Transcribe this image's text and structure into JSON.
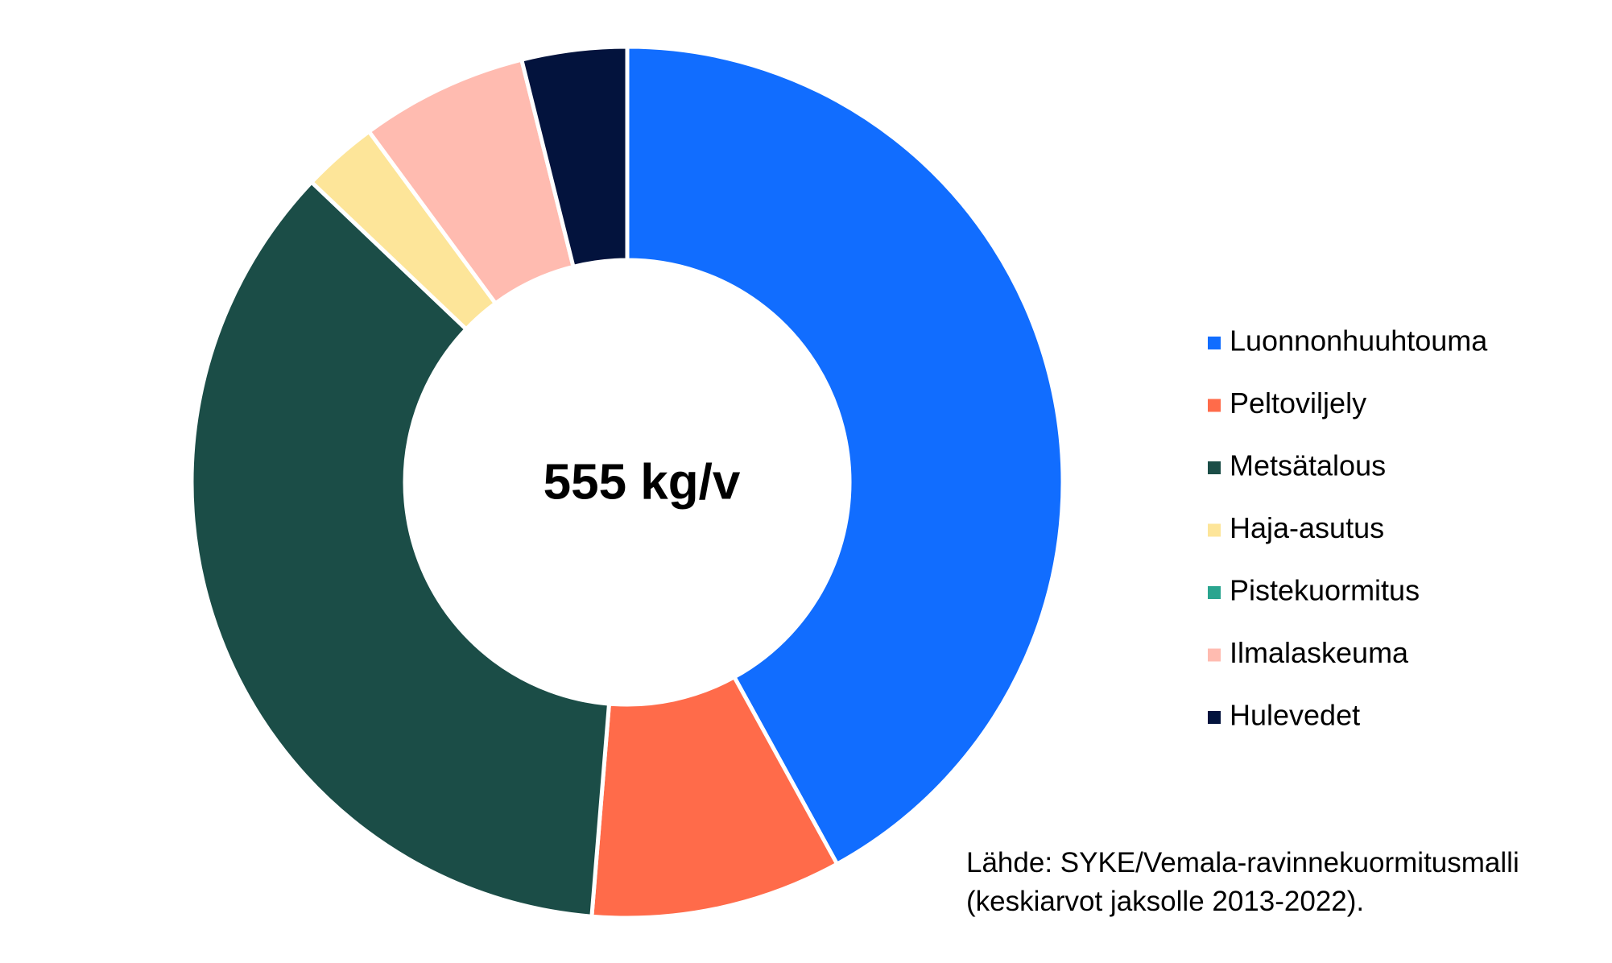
{
  "chart_data": {
    "type": "donut",
    "center_label": "555 kg/v",
    "categories": [
      "Luonnonhuuhtouma",
      "Peltoviljely",
      "Metsätalous",
      "Haja-asutus",
      "Pistekuormitus",
      "Ilmalaskeuma",
      "Hulevedet"
    ],
    "values": [
      42,
      9.3,
      35.8,
      2.8,
      0,
      6.2,
      3.9
    ],
    "colors": [
      "#116dff",
      "#ff6b4a",
      "#1b4d47",
      "#fde599",
      "#2aa58f",
      "#ffbbb0",
      "#03133d"
    ],
    "legend": "right",
    "source": [
      "Lähde: SYKE/Vemala-ravinnekuormitusmalli",
      "(keskiarvot jaksolle 2013-2022)."
    ]
  }
}
